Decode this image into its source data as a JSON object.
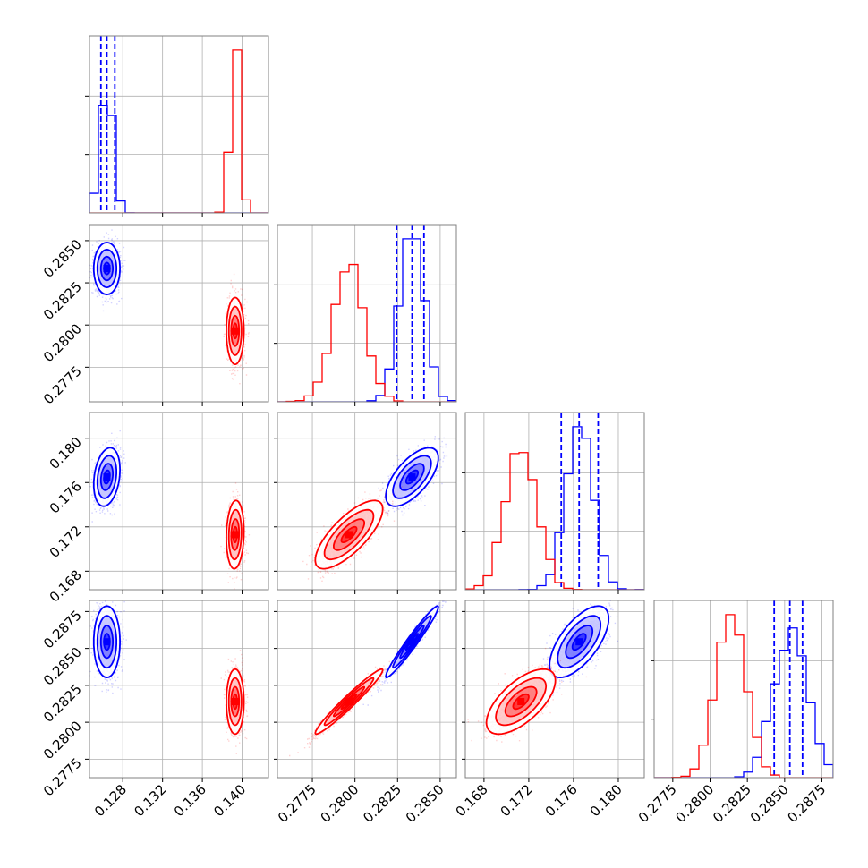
{
  "chart_data": {
    "type": "corner",
    "title": "",
    "grid": true,
    "colors": {
      "blue": "#0000ff",
      "red": "#ff0000",
      "grid": "#b0b0b0"
    },
    "parameters": [
      {
        "index": 0,
        "range": [
          0.12465,
          0.14265
        ],
        "ticks": [
          "0.128",
          "0.132",
          "0.136",
          "0.140"
        ],
        "tick_values": [
          0.128,
          0.132,
          0.136,
          0.14
        ]
      },
      {
        "index": 1,
        "range": [
          0.27545,
          0.28595
        ],
        "ticks": [
          "0.2775",
          "0.2800",
          "0.2825",
          "0.2850"
        ],
        "tick_values": [
          0.2775,
          0.28,
          0.2825,
          0.285
        ]
      },
      {
        "index": 2,
        "range": [
          0.16633,
          0.18232
        ],
        "ticks": [
          "0.168",
          "0.172",
          "0.176",
          "0.180"
        ],
        "tick_values": [
          0.168,
          0.172,
          0.176,
          0.18
        ]
      },
      {
        "index": 3,
        "range": [
          0.27625,
          0.28825
        ],
        "ticks": [
          "0.2775",
          "0.2800",
          "0.2825",
          "0.2850",
          "0.2875"
        ],
        "tick_values": [
          0.2775,
          0.28,
          0.2825,
          0.285,
          0.2875
        ]
      }
    ],
    "series": [
      {
        "color": "blue",
        "means": [
          0.1264,
          0.28335,
          0.1765,
          0.28545
        ],
        "sds": [
          0.0006,
          0.0007,
          0.0012,
          0.0011
        ],
        "quantiles": [
          [
            0.1258,
            0.1264,
            0.1272
          ],
          [
            0.28245,
            0.28335,
            0.28405
          ],
          [
            0.1749,
            0.1765,
            0.1782
          ],
          [
            0.2843,
            0.28535,
            0.2862
          ]
        ],
        "correlations": {
          "1-0": 0.0,
          "2-0": 0.25,
          "2-1": 0.65,
          "3-0": 0.0,
          "3-1": 0.97,
          "3-2": 0.65
        }
      },
      {
        "color": "red",
        "means": [
          0.1393,
          0.27965,
          0.1713,
          0.2814
        ],
        "sds": [
          0.0004,
          0.0009,
          0.0014,
          0.001
        ],
        "correlations": {
          "1-0": 0.0,
          "2-0": 0.1,
          "2-1": 0.75,
          "3-0": 0.0,
          "3-1": 0.97,
          "3-2": 0.65
        }
      }
    ]
  }
}
